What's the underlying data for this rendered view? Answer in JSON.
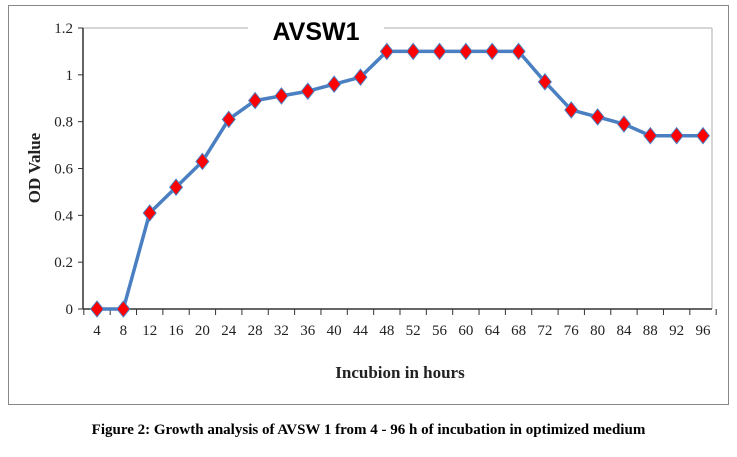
{
  "chart_data": {
    "type": "line",
    "title": "AVSW1",
    "xlabel": "Incubion in hours",
    "ylabel": "OD Value",
    "categories": [
      "4",
      "8",
      "12",
      "16",
      "20",
      "24",
      "28",
      "32",
      "36",
      "40",
      "44",
      "48",
      "52",
      "56",
      "60",
      "64",
      "68",
      "72",
      "76",
      "80",
      "84",
      "88",
      "92",
      "96"
    ],
    "series": [
      {
        "name": "AVSW1",
        "values": [
          0,
          0,
          0.41,
          0.52,
          0.63,
          0.81,
          0.89,
          0.91,
          0.93,
          0.96,
          0.99,
          1.1,
          1.1,
          1.1,
          1.1,
          1.1,
          1.1,
          0.97,
          0.85,
          0.82,
          0.79,
          0.74,
          0.74,
          0.74
        ]
      }
    ],
    "yticks": [
      "0",
      "0.2",
      "0.4",
      "0.6",
      "0.8",
      "1",
      "1.2"
    ],
    "ylim": [
      0,
      1.2
    ],
    "grid": false,
    "line_color": "#4a7fc1",
    "marker_color": "#ff0000"
  },
  "caption": "Figure 2: Growth analysis of AVSW 1 from 4 - 96 h of incubation in optimized medium"
}
